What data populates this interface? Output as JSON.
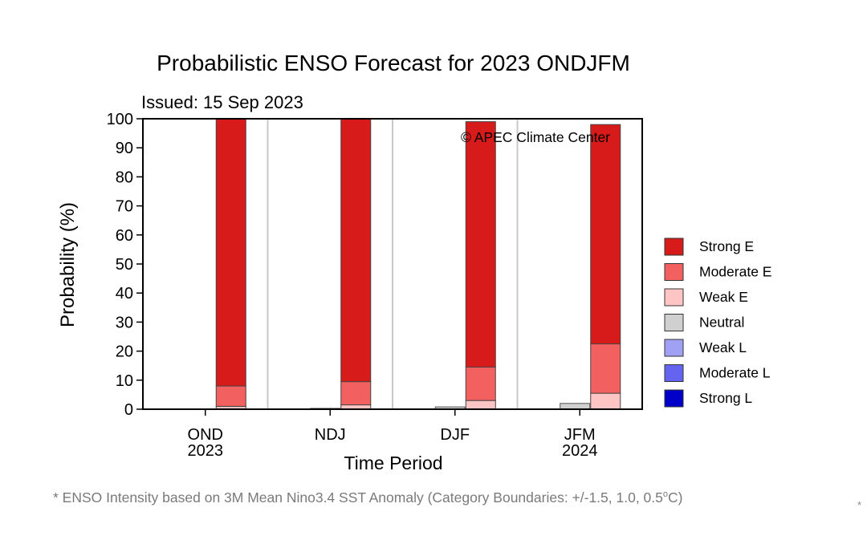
{
  "chart_data": {
    "type": "bar",
    "stacked": true,
    "title": "Probabilistic ENSO Forecast for 2023 ONDJFM",
    "subtitle": "Issued: 15 Sep 2023",
    "watermark": "© APEC Climate Center",
    "xlabel": "Time Period",
    "ylabel": "Probability (%)",
    "ylim": [
      0,
      100
    ],
    "yticks": [
      0,
      10,
      20,
      30,
      40,
      50,
      60,
      70,
      80,
      90,
      100
    ],
    "grid": false,
    "legend_position": "right",
    "categories": [
      {
        "label": "OND",
        "year": "2023"
      },
      {
        "label": "NDJ",
        "year": ""
      },
      {
        "label": "DJF",
        "year": ""
      },
      {
        "label": "JFM",
        "year": "2024"
      }
    ],
    "neutral": {
      "name": "Neutral",
      "color": "#d0d0d0",
      "values": [
        0,
        0.3,
        0.8,
        2.0
      ]
    },
    "series": [
      {
        "name": "Weak E",
        "color": "#ffc4c4",
        "values": [
          1,
          1.5,
          3,
          5.5
        ]
      },
      {
        "name": "Moderate E",
        "color": "#f36060",
        "values": [
          7,
          8,
          11.5,
          17
        ]
      },
      {
        "name": "Strong E",
        "color": "#d71a1a",
        "values": [
          92,
          90.5,
          84.5,
          75.5
        ]
      }
    ],
    "legend": [
      {
        "name": "Strong E",
        "color": "#d71a1a"
      },
      {
        "name": "Moderate E",
        "color": "#f36060"
      },
      {
        "name": "Weak E",
        "color": "#ffc4c4"
      },
      {
        "name": "Neutral",
        "color": "#d0d0d0"
      },
      {
        "name": "Weak L",
        "color": "#a0a0f5"
      },
      {
        "name": "Moderate L",
        "color": "#6464f0"
      },
      {
        "name": "Strong L",
        "color": "#0000c8"
      }
    ]
  },
  "footnote": {
    "text": "* ENSO Intensity based on 3M Mean Nino3.4 SST Anomaly (Category Boundaries: +/-1.5, 1.0, 0.5",
    "degree": "o",
    "unit_suffix": "C)"
  },
  "corner_mark": "*"
}
